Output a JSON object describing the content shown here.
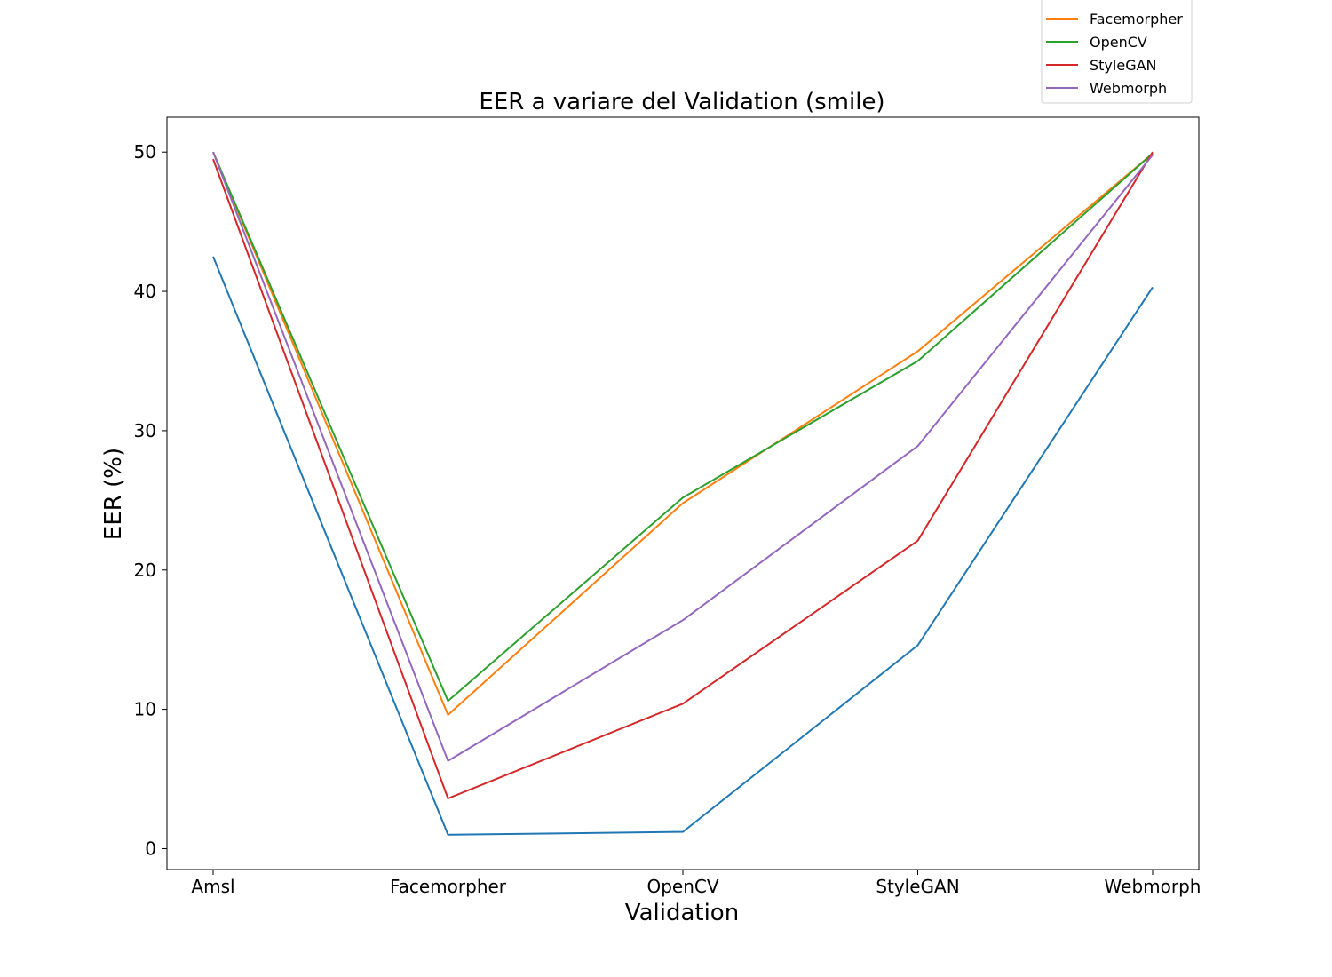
{
  "chart_data": {
    "type": "line",
    "title": "EER a variare del Validation (smile)",
    "xlabel": "Validation",
    "ylabel": "EER (%)",
    "categories": [
      "Amsl",
      "Facemorpher",
      "OpenCV",
      "StyleGAN",
      "Webmorph"
    ],
    "ylim": [
      -1.5,
      52.5
    ],
    "yticks": [
      0,
      10,
      20,
      30,
      40,
      50
    ],
    "grid": false,
    "legend_position": "top-right",
    "series": [
      {
        "name": "",
        "color": "#1f77b4",
        "values": [
          42.5,
          1.0,
          1.2,
          14.6,
          40.3
        ]
      },
      {
        "name": "Facemorpher",
        "color": "#ff7f0e",
        "values": [
          50.0,
          9.6,
          24.8,
          35.7,
          49.9
        ]
      },
      {
        "name": "OpenCV",
        "color": "#2ca02c",
        "values": [
          50.0,
          10.6,
          25.2,
          35.0,
          49.9
        ]
      },
      {
        "name": "StyleGAN",
        "color": "#d62728",
        "values": [
          49.5,
          3.6,
          10.4,
          22.1,
          50.0
        ]
      },
      {
        "name": "Webmorph",
        "color": "#9467bd",
        "values": [
          50.0,
          6.3,
          16.4,
          28.9,
          49.8
        ]
      }
    ]
  }
}
